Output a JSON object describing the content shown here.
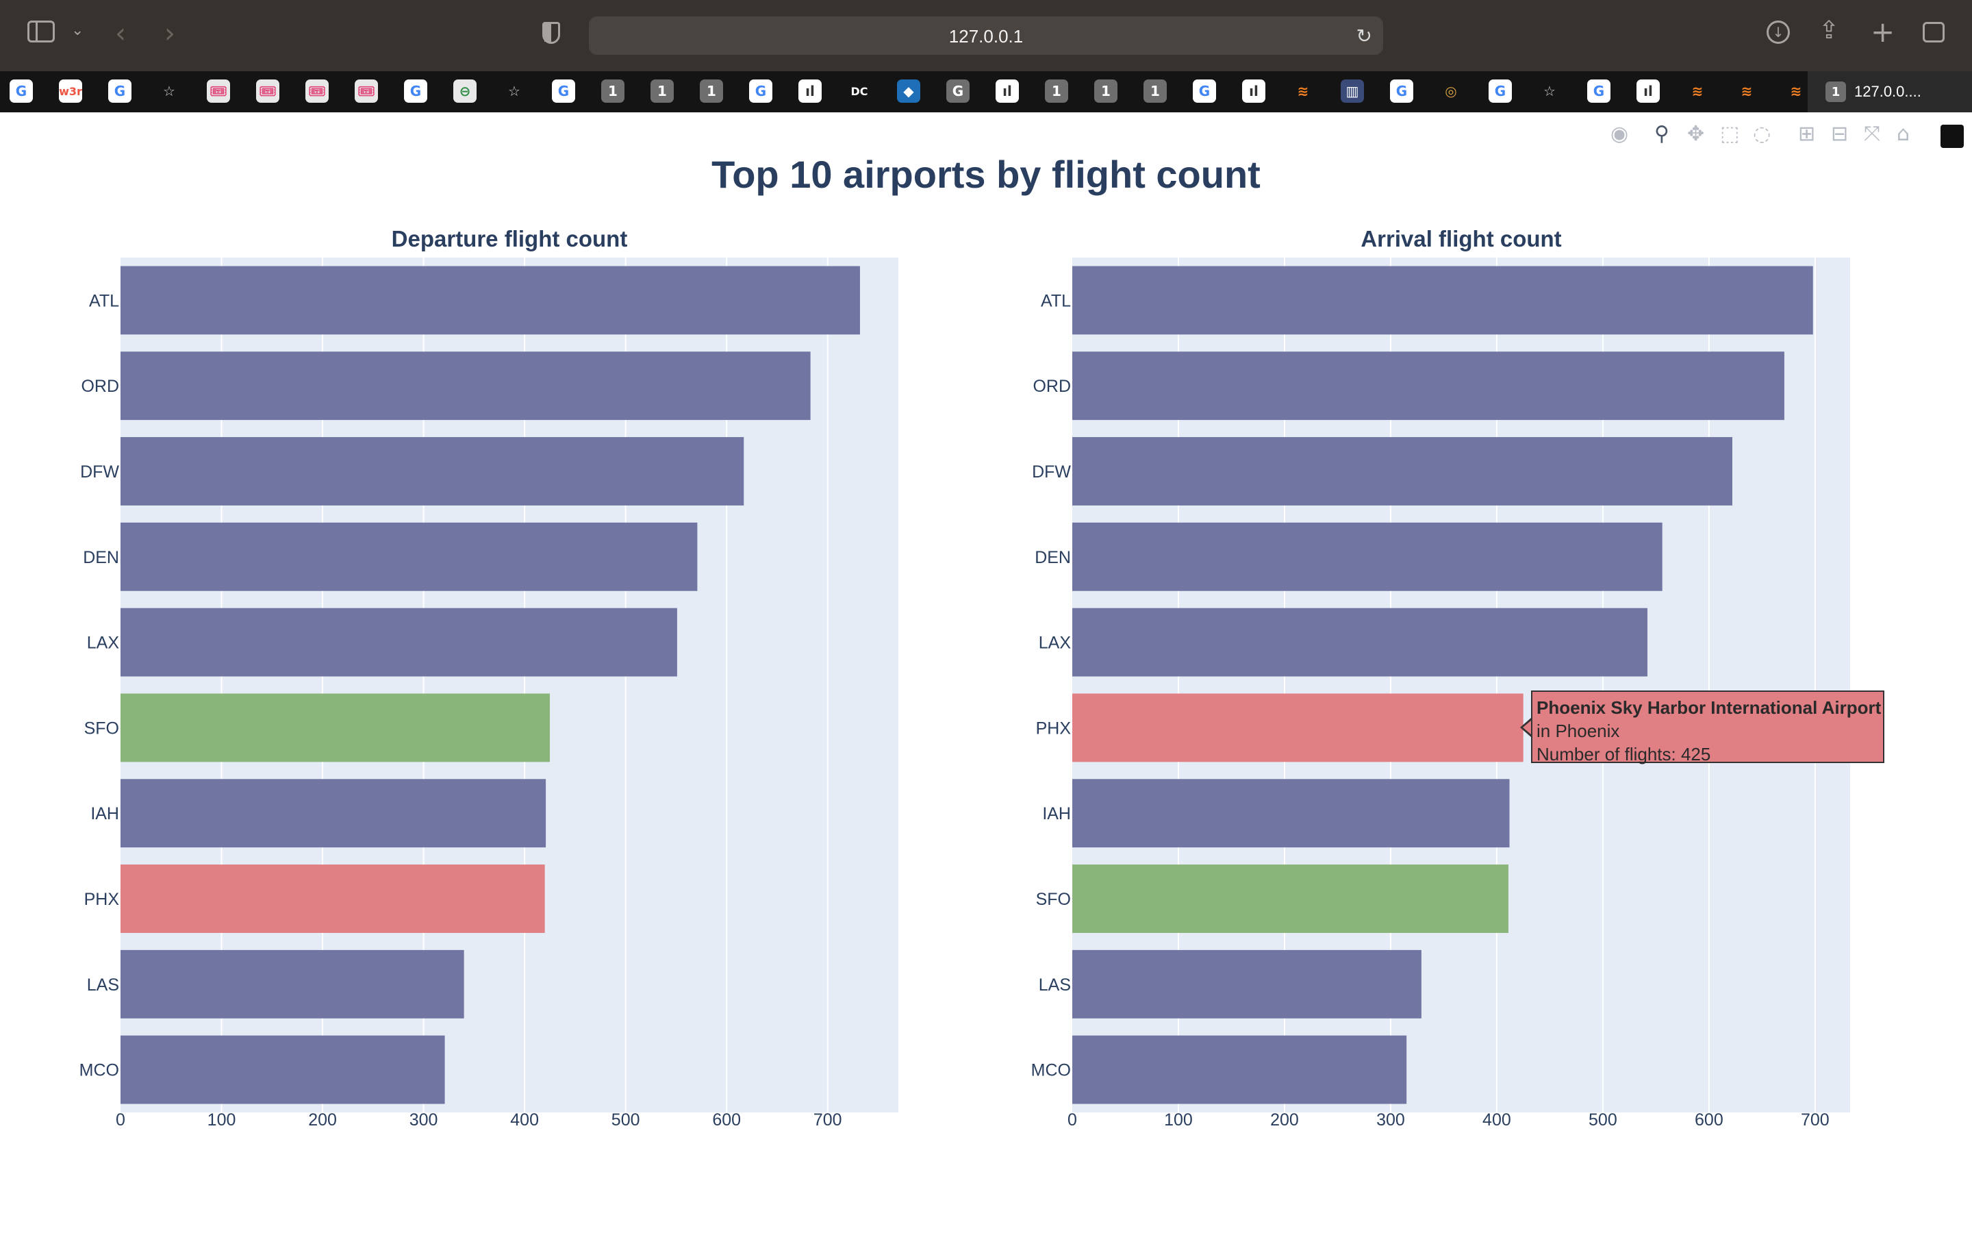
{
  "browser": {
    "url": "127.0.0.1",
    "active_tab_badge": "1",
    "active_tab_title": "127.0.0....",
    "tabs": [
      {
        "icon": "google-icon",
        "label": "G",
        "color": "#ffffff",
        "bg": "#ffffff",
        "fg": "#4285f4"
      },
      {
        "icon": "w3schools-icon",
        "label": "w3r",
        "color": "#ffffff",
        "bg": "#ffffff",
        "fg": "#e54"
      },
      {
        "icon": "google-icon",
        "label": "G",
        "bg": "#ffffff",
        "fg": "#4285f4"
      },
      {
        "icon": "star-icon",
        "label": "☆",
        "bg": "transparent",
        "fg": "#cfcfcf"
      },
      {
        "icon": "fandango-icon",
        "label": "🎟",
        "bg": "#e8e8e8",
        "fg": "#e0457b"
      },
      {
        "icon": "fandango-icon",
        "label": "🎟",
        "bg": "#e8e8e8",
        "fg": "#e0457b"
      },
      {
        "icon": "fandango-icon",
        "label": "🎟",
        "bg": "#e8e8e8",
        "fg": "#e0457b"
      },
      {
        "icon": "fandango-icon",
        "label": "🎟",
        "bg": "#e8e8e8",
        "fg": "#e0457b"
      },
      {
        "icon": "google-icon",
        "label": "G",
        "bg": "#ffffff",
        "fg": "#4285f4"
      },
      {
        "icon": "geeksforgeeks-icon",
        "label": "⊖",
        "bg": "#e8e8e8",
        "fg": "#2f8d46"
      },
      {
        "icon": "star-icon",
        "label": "☆",
        "bg": "transparent",
        "fg": "#cfcfcf"
      },
      {
        "icon": "google-icon",
        "label": "G",
        "bg": "#ffffff",
        "fg": "#4285f4"
      },
      {
        "icon": "number-one-icon",
        "label": "1",
        "bg": "#6e6e6e",
        "fg": "#ffffff"
      },
      {
        "icon": "number-one-icon",
        "label": "1",
        "bg": "#6e6e6e",
        "fg": "#ffffff"
      },
      {
        "icon": "number-one-icon",
        "label": "1",
        "bg": "#6e6e6e",
        "fg": "#ffffff"
      },
      {
        "icon": "google-icon",
        "label": "G",
        "bg": "#ffffff",
        "fg": "#4285f4"
      },
      {
        "icon": "plotly-icon",
        "label": "ıl",
        "bg": "#ffffff",
        "fg": "#333"
      },
      {
        "icon": "datacamp-icon",
        "label": "DC",
        "bg": "transparent",
        "fg": "#ffffff"
      },
      {
        "icon": "bird-icon",
        "label": "◆",
        "bg": "#1e6fb8",
        "fg": "#ffffff"
      },
      {
        "icon": "g-letter-icon",
        "label": "G",
        "bg": "#6e6e6e",
        "fg": "#ffffff"
      },
      {
        "icon": "plotly-icon",
        "label": "ıl",
        "bg": "#ffffff",
        "fg": "#333"
      },
      {
        "icon": "number-one-icon",
        "label": "1",
        "bg": "#6e6e6e",
        "fg": "#ffffff"
      },
      {
        "icon": "number-one-icon",
        "label": "1",
        "bg": "#6e6e6e",
        "fg": "#ffffff"
      },
      {
        "icon": "number-one-icon",
        "label": "1",
        "bg": "#6e6e6e",
        "fg": "#ffffff"
      },
      {
        "icon": "google-icon",
        "label": "G",
        "bg": "#ffffff",
        "fg": "#4285f4"
      },
      {
        "icon": "plotly-icon",
        "label": "ıl",
        "bg": "#ffffff",
        "fg": "#333"
      },
      {
        "icon": "stackoverflow-icon",
        "label": "≋",
        "bg": "transparent",
        "fg": "#f48024"
      },
      {
        "icon": "chart-icon",
        "label": "▥",
        "bg": "#3a4b7a",
        "fg": "#ffffff"
      },
      {
        "icon": "google-icon",
        "label": "G",
        "bg": "#ffffff",
        "fg": "#4285f4"
      },
      {
        "icon": "globe-icon",
        "label": "◎",
        "bg": "transparent",
        "fg": "#d8a040"
      },
      {
        "icon": "google-icon",
        "label": "G",
        "bg": "#ffffff",
        "fg": "#4285f4"
      },
      {
        "icon": "star-icon",
        "label": "☆",
        "bg": "transparent",
        "fg": "#cfcfcf"
      },
      {
        "icon": "google-icon",
        "label": "G",
        "bg": "#ffffff",
        "fg": "#4285f4"
      },
      {
        "icon": "plotly-icon",
        "label": "ıl",
        "bg": "#ffffff",
        "fg": "#333"
      },
      {
        "icon": "stackoverflow-icon",
        "label": "≋",
        "bg": "transparent",
        "fg": "#f48024"
      },
      {
        "icon": "stackoverflow-icon",
        "label": "≋",
        "bg": "transparent",
        "fg": "#f48024"
      },
      {
        "icon": "stackoverflow-icon",
        "label": "≋",
        "bg": "transparent",
        "fg": "#f48024"
      }
    ]
  },
  "modebar": [
    "camera-icon",
    "zoom-icon",
    "pan-icon",
    "box-select-icon",
    "lasso-select-icon",
    "zoom-in-icon",
    "zoom-out-icon",
    "autoscale-icon",
    "reset-axes-icon",
    "plotly-logo-icon"
  ],
  "colors": {
    "default_bar": "#7075a2",
    "sfo_bar": "#89b57a",
    "phx_bar": "#e07f84",
    "plot_bg": "#e5ecf6",
    "text": "#2a3f5f"
  },
  "title": "Top 10 airports by flight count",
  "chart_data": [
    {
      "type": "bar",
      "orientation": "horizontal",
      "title": "Departure flight count",
      "categories": [
        "ATL",
        "ORD",
        "DFW",
        "DEN",
        "LAX",
        "SFO",
        "IAH",
        "PHX",
        "LAS",
        "MCO"
      ],
      "values": [
        732,
        683,
        617,
        571,
        551,
        425,
        421,
        420,
        340,
        321
      ],
      "highlight": {
        "SFO": "#89b57a",
        "PHX": "#e07f84"
      },
      "xlim": [
        0,
        770
      ],
      "xticks": [
        0,
        100,
        200,
        300,
        400,
        500,
        600,
        700
      ]
    },
    {
      "type": "bar",
      "orientation": "horizontal",
      "title": "Arrival flight count",
      "categories": [
        "ATL",
        "ORD",
        "DFW",
        "DEN",
        "LAX",
        "PHX",
        "IAH",
        "SFO",
        "LAS",
        "MCO"
      ],
      "values": [
        698,
        671,
        622,
        556,
        542,
        425,
        412,
        411,
        329,
        315
      ],
      "highlight": {
        "SFO": "#89b57a",
        "PHX": "#e07f84"
      },
      "xlim": [
        0,
        733
      ],
      "xticks": [
        0,
        100,
        200,
        300,
        400,
        500,
        600,
        700
      ]
    }
  ],
  "tooltip": {
    "name": "Phoenix Sky Harbor International Airport",
    "city": "in Phoenix",
    "flights": "Number of flights: 425"
  }
}
